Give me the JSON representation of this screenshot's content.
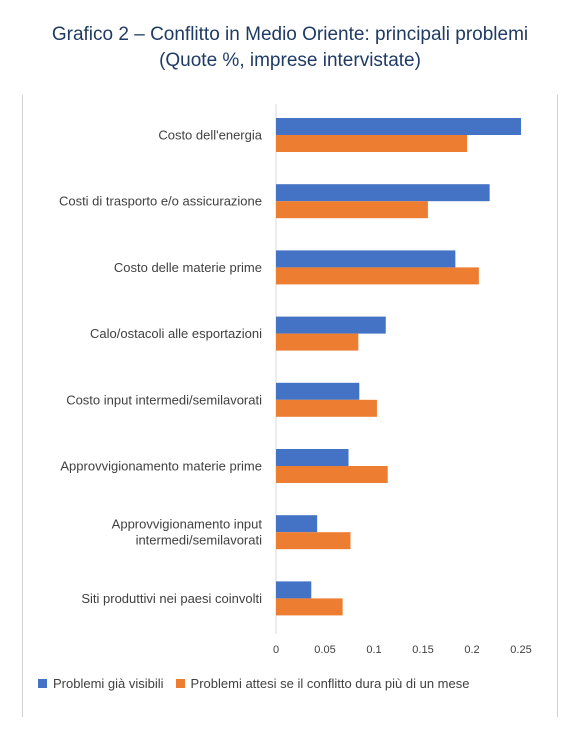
{
  "title": "Grafico 2 – Conflitto in Medio Oriente: principali problemi",
  "subtitle": "(Quote %, imprese intervistate)",
  "chart_data": {
    "type": "bar",
    "orientation": "horizontal",
    "title": "Grafico 2 – Conflitto in Medio Oriente: principali problemi",
    "subtitle": "(Quote %, imprese intervistate)",
    "categories": [
      [
        "Costo dell'energia"
      ],
      [
        "Costi di trasporto e/o assicurazione"
      ],
      [
        "Costo delle materie prime"
      ],
      [
        "Calo/ostacoli alle esportazioni"
      ],
      [
        "Costo input intermedi/semilavorati"
      ],
      [
        "Approvvigionamento materie prime"
      ],
      [
        "Approvvigionamento input",
        "intermedi/semilavorati"
      ],
      [
        "Siti produttivi nei paesi coinvolti"
      ]
    ],
    "series": [
      {
        "name": "Problemi già visibili",
        "color": "#4472c4",
        "values": [
          0.25,
          0.218,
          0.183,
          0.112,
          0.085,
          0.074,
          0.042,
          0.036
        ]
      },
      {
        "name": "Problemi attesi se il conflitto dura più di un mese",
        "color": "#ed7d31",
        "values": [
          0.195,
          0.155,
          0.207,
          0.084,
          0.103,
          0.114,
          0.076,
          0.068
        ]
      }
    ],
    "xlim": [
      0,
      0.25
    ],
    "xticks": [
      "0",
      "0.05",
      "0.1",
      "0.15",
      "0.2",
      "0.25"
    ],
    "grid": false,
    "legend_position": "bottom"
  }
}
